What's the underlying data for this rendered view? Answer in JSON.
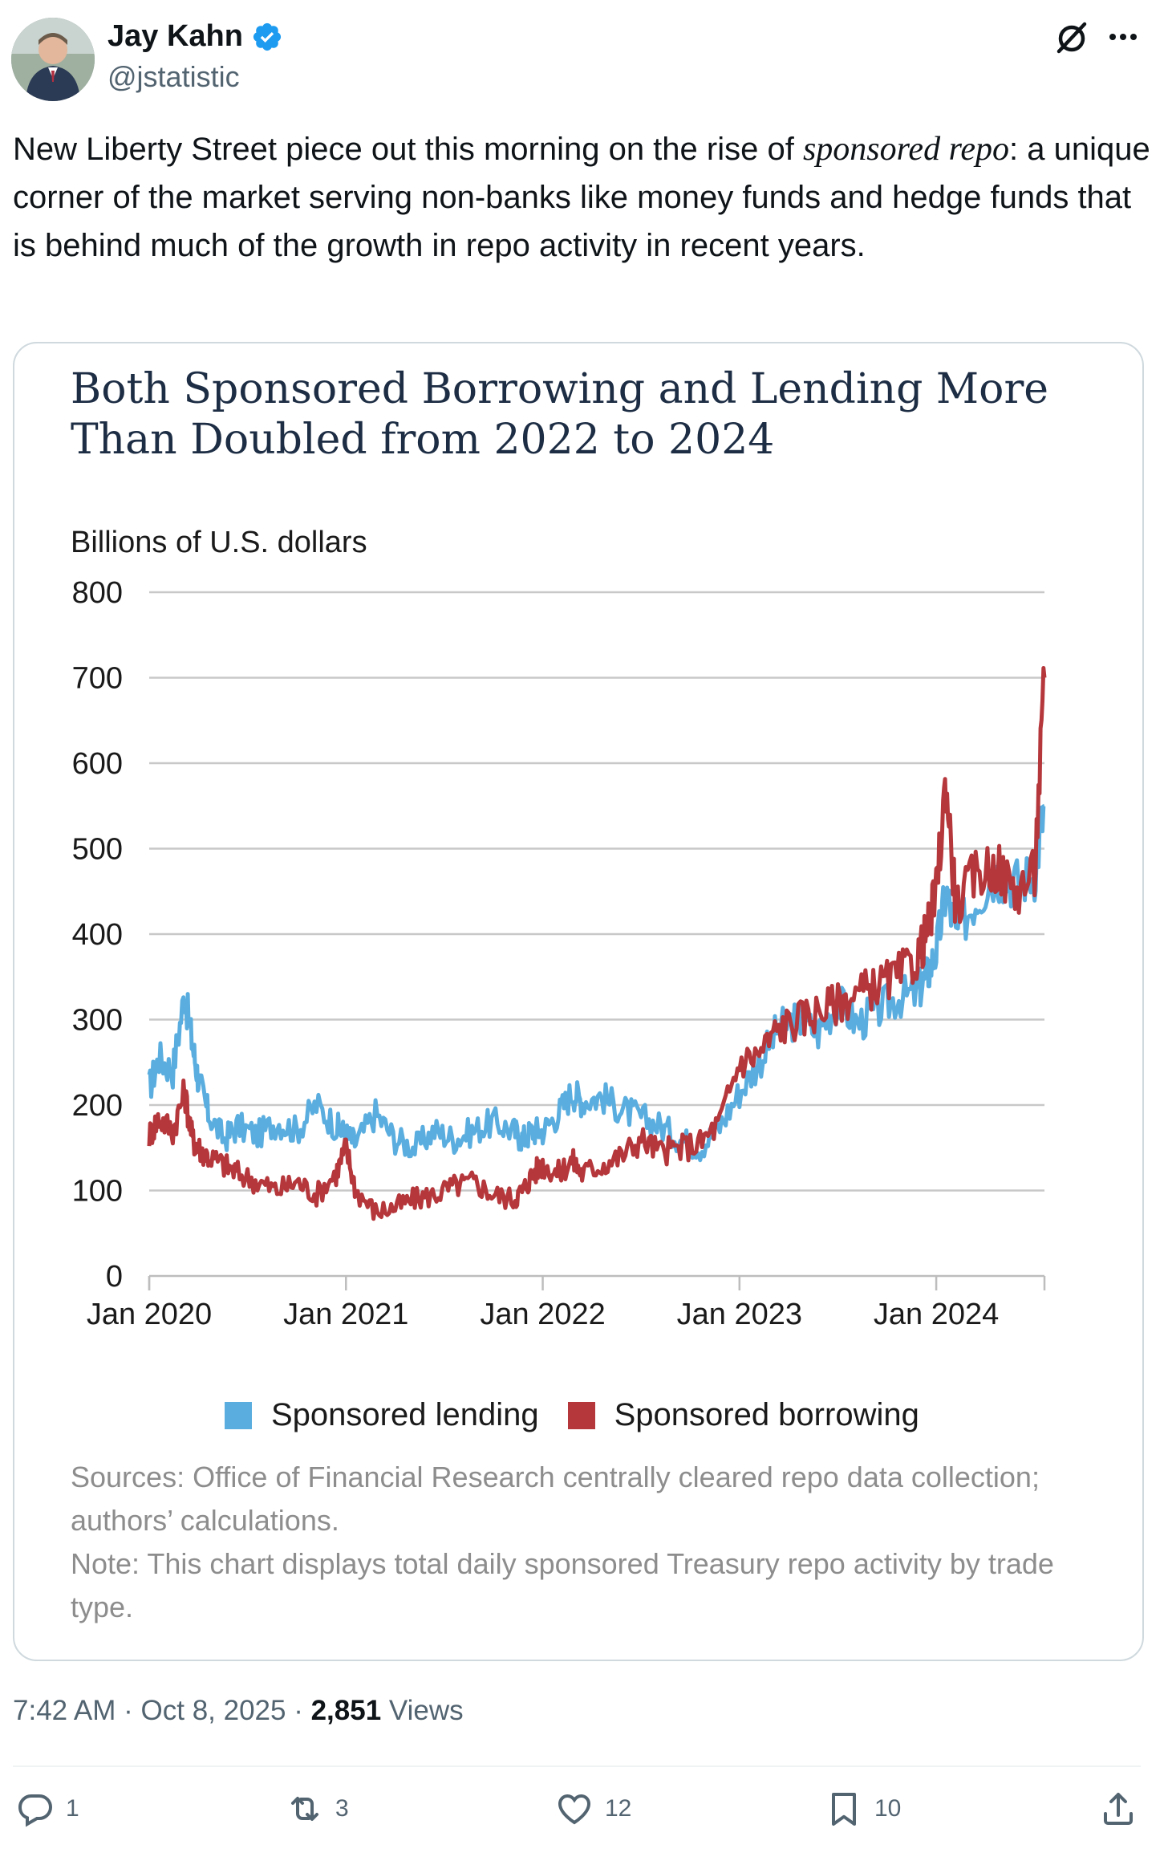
{
  "author": {
    "name": "Jay Kahn",
    "handle": "@jstatistic"
  },
  "tweet": {
    "text_before": "New Liberty Street piece out this morning on the rise of ",
    "text_italic": "sponsored repo",
    "text_after": ": a unique corner of the market serving non-banks like money funds and hedge funds that is behind much of the growth in repo activity in recent years."
  },
  "chart": {
    "title": "Both Sponsored Borrowing and Lending More Than Doubled from 2022 to 2024",
    "sources": "Sources: Office of Financial Research centrally cleared repo data collection; authors’ calculations.",
    "note": "Note: This chart displays total daily sponsored Treasury repo activity by trade type."
  },
  "chart_data": {
    "type": "line",
    "title": "Both Sponsored Borrowing and Lending More Than Doubled from 2022 to 2024",
    "ylabel": "Billions of U.S. dollars",
    "xlabel": "",
    "ylim": [
      0,
      800
    ],
    "yticks": [
      "0",
      "100",
      "200",
      "300",
      "400",
      "500",
      "600",
      "700",
      "800"
    ],
    "xticks": [
      "Jan 2020",
      "Jan 2021",
      "Jan 2022",
      "Jan 2023",
      "Jan 2024"
    ],
    "xrange": [
      2020.0,
      2024.55
    ],
    "grid": true,
    "legend_position": "bottom",
    "colors": {
      "lending": "#5aaedf",
      "borrowing": "#b5363b"
    },
    "series": [
      {
        "name": "Sponsored lending",
        "x": [
          2020.0,
          2020.05,
          2020.12,
          2020.18,
          2020.22,
          2020.25,
          2020.3,
          2020.38,
          2020.45,
          2020.55,
          2020.65,
          2020.75,
          2020.85,
          2020.95,
          2021.0,
          2021.05,
          2021.15,
          2021.25,
          2021.35,
          2021.45,
          2021.55,
          2021.65,
          2021.75,
          2021.85,
          2021.9,
          2021.95,
          2022.0,
          2022.08,
          2022.15,
          2022.2,
          2022.3,
          2022.4,
          2022.5,
          2022.6,
          2022.7,
          2022.8,
          2022.9,
          2023.0,
          2023.1,
          2023.2,
          2023.3,
          2023.4,
          2023.5,
          2023.6,
          2023.7,
          2023.8,
          2023.9,
          2023.95,
          2024.0,
          2024.05,
          2024.1,
          2024.2,
          2024.3,
          2024.4,
          2024.5,
          2024.55
        ],
        "values": [
          220,
          255,
          240,
          330,
          270,
          230,
          190,
          160,
          175,
          165,
          180,
          170,
          200,
          175,
          165,
          155,
          190,
          160,
          150,
          170,
          160,
          170,
          180,
          170,
          160,
          170,
          170,
          190,
          215,
          205,
          210,
          195,
          185,
          175,
          160,
          150,
          175,
          215,
          250,
          290,
          300,
          285,
          320,
          295,
          310,
          325,
          330,
          350,
          380,
          450,
          400,
          440,
          470,
          460,
          470,
          550
        ]
      },
      {
        "name": "Sponsored borrowing",
        "x": [
          2020.0,
          2020.05,
          2020.12,
          2020.18,
          2020.22,
          2020.25,
          2020.3,
          2020.38,
          2020.45,
          2020.55,
          2020.65,
          2020.75,
          2020.85,
          2020.95,
          2021.0,
          2021.05,
          2021.15,
          2021.25,
          2021.35,
          2021.45,
          2021.55,
          2021.65,
          2021.75,
          2021.85,
          2021.9,
          2021.95,
          2022.0,
          2022.08,
          2022.15,
          2022.2,
          2022.3,
          2022.4,
          2022.5,
          2022.6,
          2022.7,
          2022.8,
          2022.9,
          2023.0,
          2023.1,
          2023.2,
          2023.3,
          2023.4,
          2023.5,
          2023.6,
          2023.7,
          2023.8,
          2023.9,
          2023.95,
          2024.0,
          2024.05,
          2024.1,
          2024.2,
          2024.3,
          2024.4,
          2024.5,
          2024.55
        ],
        "values": [
          165,
          185,
          170,
          215,
          160,
          150,
          140,
          130,
          120,
          110,
          100,
          110,
          95,
          120,
          150,
          100,
          75,
          80,
          90,
          95,
          105,
          110,
          95,
          90,
          100,
          120,
          130,
          120,
          135,
          120,
          130,
          140,
          160,
          145,
          150,
          155,
          180,
          250,
          260,
          290,
          300,
          310,
          320,
          330,
          340,
          350,
          370,
          400,
          450,
          580,
          430,
          470,
          480,
          450,
          470,
          700
        ]
      }
    ]
  },
  "legend": {
    "lending": "Sponsored lending",
    "borrowing": "Sponsored borrowing"
  },
  "meta": {
    "time": "7:42 AM",
    "sep1": " · ",
    "date": "Oct 8, 2025",
    "sep2": " · ",
    "views_count": "2,851",
    "views_label": " Views"
  },
  "actions": {
    "replies": "1",
    "reposts": "3",
    "likes": "12",
    "bookmarks": "10"
  },
  "icons": [
    "verified-badge-icon",
    "grok-icon",
    "more-icon",
    "reply-icon",
    "repost-icon",
    "like-icon",
    "bookmark-icon",
    "share-icon"
  ]
}
